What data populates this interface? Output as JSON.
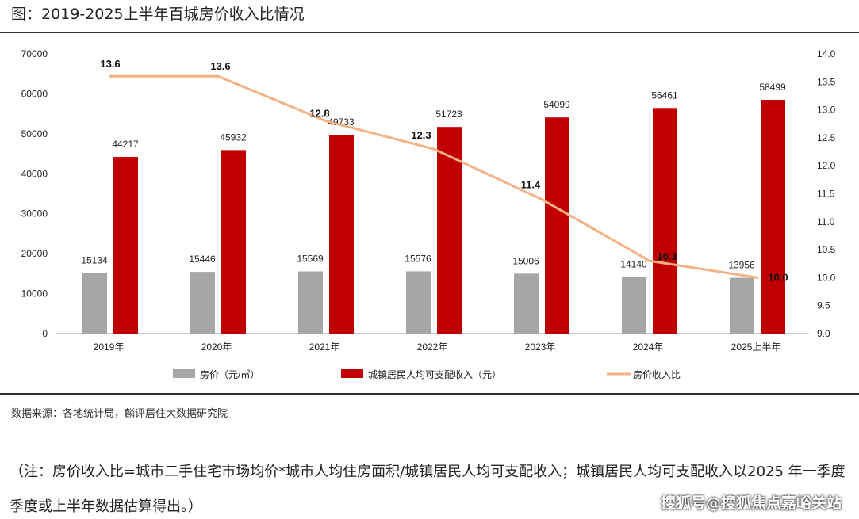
{
  "title": "图：2019-2025上半年百城房价收入比情况",
  "source": "数据来源：各地统计局，麟评居住大数据研究院",
  "note": "（注：房价收入比=城市二手住宅市场均价*城市人均住房面积/城镇居民人均可支配收入；城镇居民人均可支配收入以2025 年一季度季度或上半年数据估算得出。）",
  "watermark": "搜狐号@搜狐焦点嘉峪关站",
  "chart_data": {
    "type": "bar+line",
    "categories": [
      "2019年",
      "2020年",
      "2021年",
      "2022年",
      "2023年",
      "2024年",
      "2025上半年"
    ],
    "left_axis": {
      "range": [
        0,
        70000
      ],
      "ticks": [
        "0",
        "10000",
        "20000",
        "30000",
        "40000",
        "50000",
        "60000",
        "70000"
      ]
    },
    "right_axis": {
      "range": [
        9.0,
        14.0
      ],
      "ticks": [
        "9.0",
        "9.5",
        "10.0",
        "10.5",
        "11.0",
        "11.5",
        "12.0",
        "12.5",
        "13.0",
        "13.5",
        "14.0"
      ]
    },
    "series": [
      {
        "name": "房价（元/㎡）",
        "type": "bar",
        "axis": "left",
        "color": "#a6a6a6",
        "values": [
          15134,
          15446,
          15569,
          15576,
          15006,
          14140,
          13956
        ]
      },
      {
        "name": "城镇居民人均可支配收入（元）",
        "type": "bar",
        "axis": "left",
        "color": "#c00000",
        "values": [
          44217,
          45932,
          49733,
          51723,
          54099,
          56461,
          58499
        ]
      },
      {
        "name": "房价收入比",
        "type": "line",
        "axis": "right",
        "color": "#f4b183",
        "values": [
          13.6,
          13.6,
          12.8,
          12.3,
          11.4,
          10.3,
          10.0
        ]
      }
    ],
    "legend": "bottom",
    "grid": false
  }
}
